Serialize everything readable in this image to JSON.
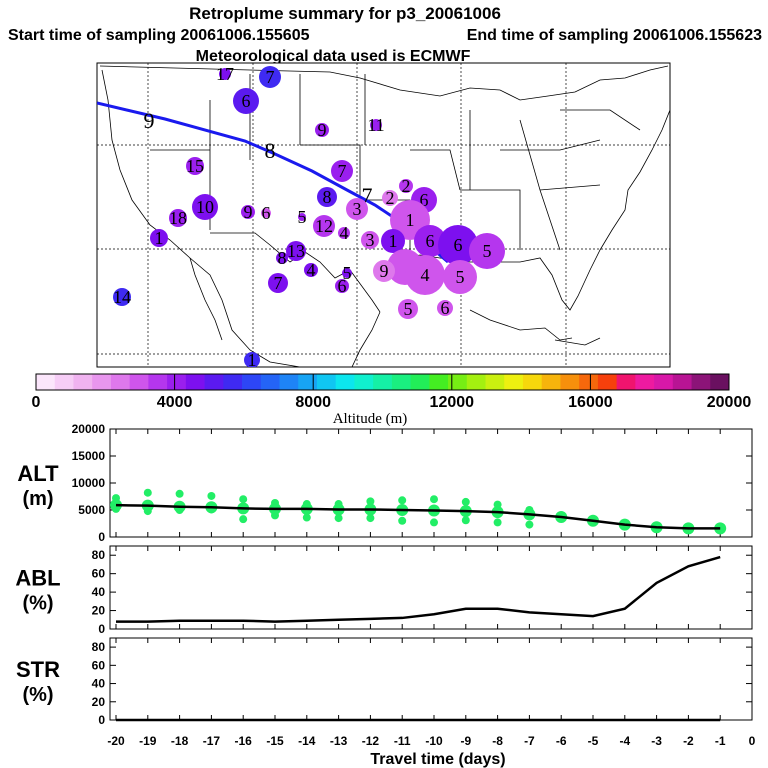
{
  "title": {
    "line1": "Retroplume summary for p3_20061006",
    "start": "Start time of sampling 20061006.155605",
    "end": "End time of sampling 20061006.155623",
    "met": "Meteorological data used is ECMWF"
  },
  "colorbar": {
    "label": "Altitude (m)",
    "min": 0,
    "max": 20000,
    "ticks": [
      0,
      4000,
      8000,
      12000,
      16000,
      20000
    ],
    "tick_labels": [
      "0",
      "4000",
      "8000",
      "12000",
      "16000",
      "20000"
    ],
    "colors": [
      "#fbe6fb",
      "#f6cdf6",
      "#f0b3f0",
      "#e896ee",
      "#de78ec",
      "#cf55ec",
      "#b536ee",
      "#9a1fee",
      "#7d10ef",
      "#5b1af0",
      "#3f2af2",
      "#2d46f6",
      "#2464f6",
      "#1e84f6",
      "#17a4f4",
      "#10c6f2",
      "#0ce6ee",
      "#10f0ce",
      "#15f0a6",
      "#1aef80",
      "#22ee58",
      "#44ee22",
      "#76ee14",
      "#a4f010",
      "#caf010",
      "#eef010",
      "#f6d80c",
      "#f6b40c",
      "#f6900c",
      "#f6680c",
      "#f6400c",
      "#f0146e",
      "#ee1aa0",
      "#d818a8",
      "#b81494",
      "#8c1478",
      "#6a1060"
    ]
  },
  "map": {
    "trajectory_labels": [
      "9",
      "8",
      "7",
      "6"
    ],
    "plume_numbers": [
      "1",
      "2",
      "3",
      "4",
      "5",
      "6",
      "7",
      "8",
      "9",
      "10",
      "11",
      "12",
      "13",
      "14",
      "15",
      "16",
      "17",
      "18"
    ]
  },
  "chart_data": [
    {
      "type": "line",
      "panel": "ALT",
      "ylabel": "ALT (m)",
      "ylabel_lines": [
        "ALT",
        "(m)"
      ],
      "ylim": [
        0,
        20000
      ],
      "yticks": [
        0,
        5000,
        10000,
        15000,
        20000
      ],
      "ytick_labels": [
        "0",
        "5000",
        "10000",
        "15000",
        "20000"
      ],
      "x": [
        -20,
        -19,
        -18,
        -17,
        -16,
        -15,
        -14,
        -13,
        -12,
        -11,
        -10,
        -9,
        -8,
        -7,
        -6,
        -5,
        -4,
        -3,
        -2,
        -1
      ],
      "values": [
        5900,
        5800,
        5600,
        5500,
        5300,
        5200,
        5200,
        5100,
        5100,
        5000,
        4900,
        4800,
        4600,
        4200,
        3700,
        3000,
        2300,
        1800,
        1600,
        1600
      ],
      "scatter_points": [
        {
          "x": -20,
          "y": 7200
        },
        {
          "x": -20,
          "y": 5200
        },
        {
          "x": -19,
          "y": 8200
        },
        {
          "x": -19,
          "y": 4800
        },
        {
          "x": -18,
          "y": 8000
        },
        {
          "x": -18,
          "y": 5000
        },
        {
          "x": -17,
          "y": 7600
        },
        {
          "x": -17,
          "y": 5100
        },
        {
          "x": -16,
          "y": 7000
        },
        {
          "x": -16,
          "y": 3300
        },
        {
          "x": -15,
          "y": 6300
        },
        {
          "x": -15,
          "y": 4000
        },
        {
          "x": -14,
          "y": 6100
        },
        {
          "x": -14,
          "y": 3600
        },
        {
          "x": -13,
          "y": 6100
        },
        {
          "x": -13,
          "y": 3500
        },
        {
          "x": -12,
          "y": 6600
        },
        {
          "x": -12,
          "y": 3500
        },
        {
          "x": -11,
          "y": 6800
        },
        {
          "x": -11,
          "y": 3000
        },
        {
          "x": -10,
          "y": 7000
        },
        {
          "x": -10,
          "y": 2700
        },
        {
          "x": -9,
          "y": 6500
        },
        {
          "x": -9,
          "y": 3100
        },
        {
          "x": -8,
          "y": 6000
        },
        {
          "x": -8,
          "y": 2700
        },
        {
          "x": -7,
          "y": 5000
        },
        {
          "x": -7,
          "y": 2300
        },
        {
          "x": -6,
          "y": 3800
        },
        {
          "x": -5,
          "y": 3000
        },
        {
          "x": -4,
          "y": 2400
        },
        {
          "x": -3,
          "y": 1900
        },
        {
          "x": -2,
          "y": 1700
        },
        {
          "x": -1,
          "y": 1600
        }
      ]
    },
    {
      "type": "line",
      "panel": "ABL",
      "ylabel": "ABL (%)",
      "ylabel_lines": [
        "ABL",
        "(%)"
      ],
      "ylim": [
        0,
        90
      ],
      "yticks": [
        0,
        20,
        40,
        60,
        80
      ],
      "ytick_labels": [
        "0",
        "20",
        "40",
        "60",
        "80"
      ],
      "x": [
        -20,
        -19,
        -18,
        -17,
        -16,
        -15,
        -14,
        -13,
        -12,
        -11,
        -10,
        -9,
        -8,
        -7,
        -6,
        -5,
        -4,
        -3,
        -2,
        -1
      ],
      "values": [
        8,
        8,
        9,
        9,
        9,
        8,
        9,
        10,
        11,
        12,
        16,
        22,
        22,
        18,
        16,
        14,
        22,
        50,
        68,
        78
      ]
    },
    {
      "type": "line",
      "panel": "STR",
      "ylabel": "STR (%)",
      "ylabel_lines": [
        "STR",
        "(%)"
      ],
      "ylim": [
        0,
        90
      ],
      "yticks": [
        0,
        20,
        40,
        60,
        80
      ],
      "ytick_labels": [
        "0",
        "20",
        "40",
        "60",
        "80"
      ],
      "x": [
        -20,
        -19,
        -18,
        -17,
        -16,
        -15,
        -14,
        -13,
        -12,
        -11,
        -10,
        -9,
        -8,
        -7,
        -6,
        -5,
        -4,
        -3,
        -2,
        -1
      ],
      "values": [
        0,
        0,
        0,
        0,
        0,
        0,
        0,
        0,
        0,
        0,
        0,
        0,
        0,
        0,
        0,
        0,
        0,
        0,
        0,
        0
      ]
    }
  ],
  "xaxis": {
    "label": "Travel time (days)",
    "xlim": [
      -20,
      0
    ],
    "ticks": [
      -20,
      -19,
      -18,
      -17,
      -16,
      -15,
      -14,
      -13,
      -12,
      -11,
      -10,
      -9,
      -8,
      -7,
      -6,
      -5,
      -4,
      -3,
      -2,
      -1,
      0
    ],
    "tick_labels": [
      "-20",
      "-19",
      "-18",
      "-17",
      "-16",
      "-15",
      "-14",
      "-13",
      "-12",
      "-11",
      "-10",
      "-9",
      "-8",
      "-7",
      "-6",
      "-5",
      "-4",
      "-3",
      "-2",
      "-1",
      "0"
    ]
  }
}
